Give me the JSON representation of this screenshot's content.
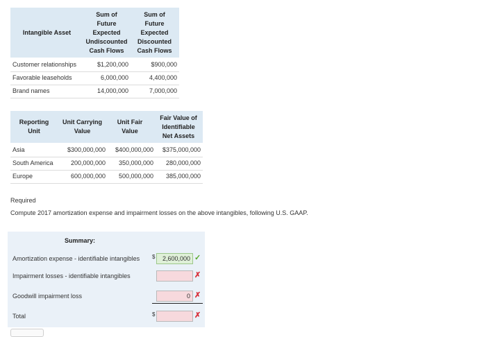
{
  "table1": {
    "headers": [
      "Intangible Asset",
      "Sum of Future Expected Undiscounted Cash Flows",
      "Sum of Future Expected Discounted Cash Flows"
    ],
    "h_lines_col2": [
      "Sum of",
      "Future",
      "Expected",
      "Undiscounted",
      "Cash Flows"
    ],
    "h_lines_col3": [
      "Sum of",
      "Future",
      "Expected",
      "Discounted",
      "Cash Flows"
    ],
    "rows": [
      {
        "asset": "Customer relationships",
        "undiscounted": "$1,200,000",
        "discounted": "$900,000"
      },
      {
        "asset": "Favorable leaseholds",
        "undiscounted": "6,000,000",
        "discounted": "4,400,000"
      },
      {
        "asset": "Brand names",
        "undiscounted": "14,000,000",
        "discounted": "7,000,000"
      }
    ]
  },
  "table2": {
    "h_col1": [
      "Reporting",
      "Unit"
    ],
    "h_col2": [
      "Unit Carrying",
      "Value"
    ],
    "h_col3": [
      "Unit Fair",
      "Value"
    ],
    "h_col4": [
      "Fair Value of",
      "Identifiable",
      "Net Assets"
    ],
    "rows": [
      {
        "unit": "Asia",
        "carrying": "$300,000,000",
        "fair": "$400,000,000",
        "net": "$375,000,000"
      },
      {
        "unit": "South America",
        "carrying": "200,000,000",
        "fair": "350,000,000",
        "net": "280,000,000"
      },
      {
        "unit": "Europe",
        "carrying": "600,000,000",
        "fair": "500,000,000",
        "net": "385,000,000"
      }
    ]
  },
  "required": {
    "title": "Required",
    "text": "Compute 2017 amortization expense and impairment losses on the above intangibles, following U.S. GAAP."
  },
  "summary": {
    "title": "Summary:",
    "amortization_label": "Amortization expense - identifiable intangibles",
    "amortization_value": "2,600,000",
    "impairment_label": "Impairment losses - identifiable intangibles",
    "impairment_value": "",
    "goodwill_label": "Goodwill impairment loss",
    "goodwill_value": "0",
    "total_label": "Total",
    "total_value": "",
    "currency": "$",
    "correct_mark": "✓",
    "wrong_mark": "✗"
  },
  "colors": {
    "header_bg": "#dce9f3",
    "summary_bg": "#eaf1f8",
    "correct": "#5aaa2e",
    "wrong": "#d9303a",
    "wrong_field": "#f7d9dd",
    "correct_field": "#dff0d8"
  }
}
